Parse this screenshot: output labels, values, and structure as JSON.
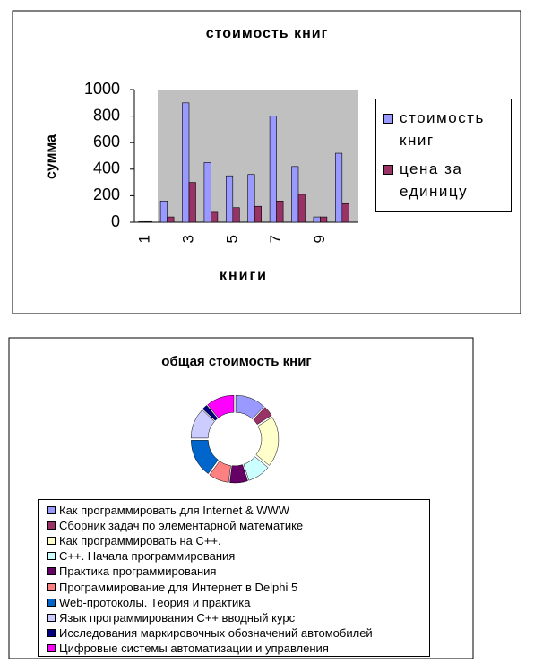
{
  "chart_data": [
    {
      "type": "bar",
      "title": "стоимость книг",
      "x_label": "книги",
      "y_label": "сумма",
      "categories": [
        "1",
        null,
        "3",
        null,
        "5",
        null,
        "7",
        null,
        "9",
        null
      ],
      "series": [
        {
          "name": "стоимость книг",
          "color": "#9999ff",
          "values": [
            5,
            160,
            900,
            450,
            350,
            360,
            800,
            420,
            40,
            520
          ]
        },
        {
          "name": "цена за единицу",
          "color": "#993366",
          "values": [
            5,
            40,
            300,
            75,
            110,
            120,
            160,
            210,
            40,
            140
          ]
        }
      ],
      "ylim": [
        0,
        1000
      ],
      "yticks": [
        0,
        200,
        400,
        600,
        800,
        1000
      ],
      "grid": false,
      "legend": "right"
    },
    {
      "type": "doughnut",
      "title": "общая стоимость книг",
      "categories": [
        "Как программировать для Internet & WWW",
        "Сборник задач по элементарной математике",
        "Как программировать на С++.",
        "С++. Начала программирования",
        "Практика программирования",
        "Программирование для Интернет в Delphi 5",
        "Web-протоколы. Теория и практика",
        "Язык программирования С++ вводный курс",
        "Исследования маркировочных обозначений автомобилей",
        "Цифровые системы автоматизации и управления"
      ],
      "values": [
        12,
        4,
        20,
        9,
        7,
        8,
        15,
        12,
        2,
        11
      ],
      "colors": [
        "#9999ff",
        "#993366",
        "#ffffcc",
        "#ccffff",
        "#660066",
        "#ff8080",
        "#0066cc",
        "#ccccff",
        "#000080",
        "#ff00ff"
      ],
      "legend": "bottom"
    }
  ]
}
